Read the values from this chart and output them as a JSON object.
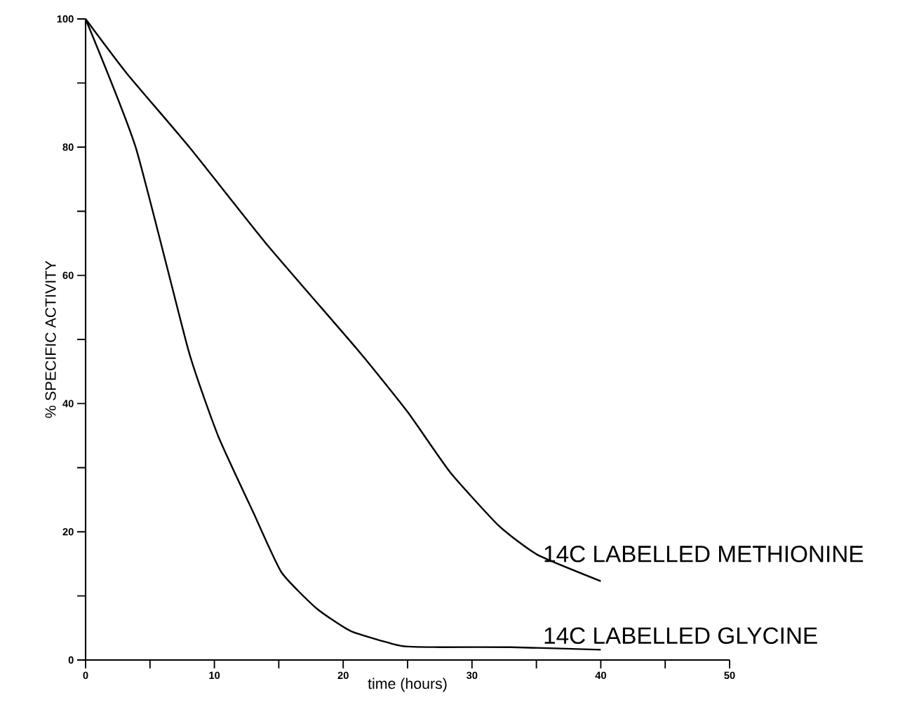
{
  "chart_data": {
    "type": "line",
    "xlabel": "time (hours)",
    "ylabel": "% SPECIFIC ACTIVITY",
    "xlim": [
      0,
      50
    ],
    "ylim": [
      0,
      100
    ],
    "xticks": [
      0,
      {
        "value": 5,
        "label": null
      },
      10,
      {
        "value": 15,
        "label": null
      },
      20,
      {
        "value": 25,
        "label": null
      },
      30,
      {
        "value": 35,
        "label": null
      },
      40,
      {
        "value": 45,
        "label": null
      },
      50
    ],
    "yticks": [
      0,
      {
        "value": 10,
        "label": null
      },
      20,
      {
        "value": 30,
        "label": null
      },
      40,
      {
        "value": 50,
        "label": null
      },
      60,
      {
        "value": 70,
        "label": null
      },
      80,
      {
        "value": 90,
        "label": null
      },
      100
    ],
    "grid": false,
    "marker": "none",
    "line_style": "solid",
    "series": [
      {
        "name": "14C LABELLED METHIONINE",
        "color": "#000000",
        "x": [
          0,
          3.2,
          8.1,
          14,
          21.2,
          25.0,
          28.3,
          32.1,
          35.1,
          40
        ],
        "values": [
          100,
          91.5,
          79.9,
          65,
          48.2,
          38.7,
          29.3,
          20.9,
          16.4,
          12.3
        ]
      },
      {
        "name": "14C LABELLED GLYCINE",
        "color": "#000000",
        "x": [
          0,
          3.9,
          8.0,
          10.3,
          13.0,
          15.2,
          17.9,
          20.6,
          24.5,
          27.5,
          33,
          40
        ],
        "values": [
          100,
          79.9,
          48.2,
          34.9,
          23.1,
          13.7,
          8.1,
          4.5,
          2.2,
          2.0,
          2.0,
          1.6
        ]
      }
    ]
  }
}
